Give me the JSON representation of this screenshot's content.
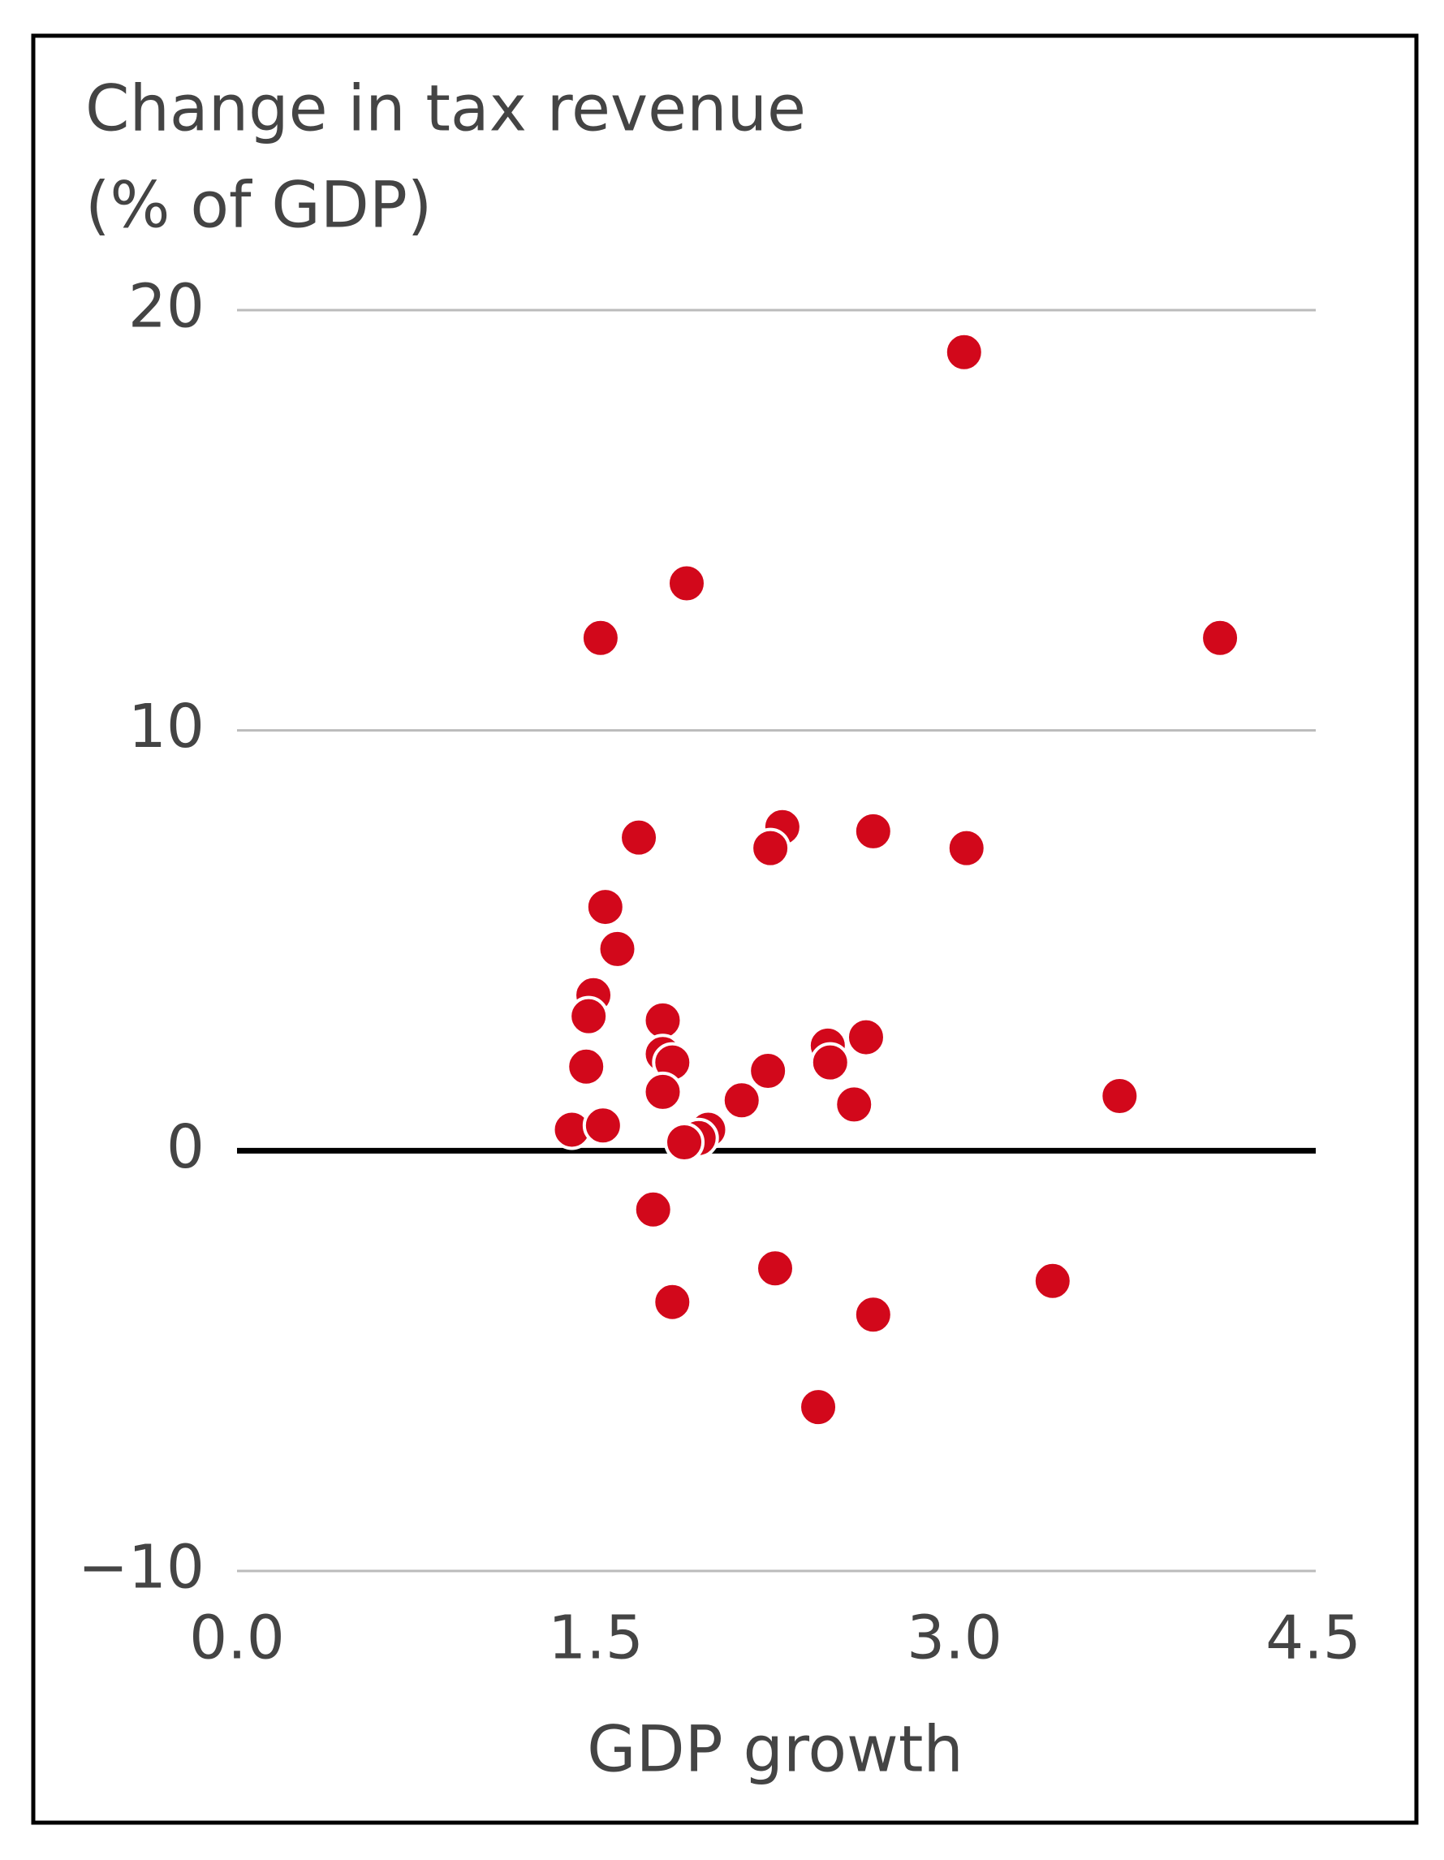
{
  "chart_data": {
    "type": "scatter",
    "title": [
      "Change in tax revenue",
      "(% of GDP)"
    ],
    "x_label": "GDP growth",
    "color": "#d2081b",
    "grid": true,
    "xlim": [
      0,
      4.5
    ],
    "xticks": [
      {
        "value": 0,
        "label": "0.0"
      },
      1.5,
      {
        "value": 3,
        "label": "3.0"
      },
      4.5
    ],
    "ylim": [
      -10,
      20
    ],
    "yticks": [
      {
        "value": -10,
        "label": "−10"
      },
      0,
      10,
      20
    ],
    "x": [
      3.04,
      1.88,
      1.52,
      4.11,
      1.68,
      2.28,
      2.23,
      2.66,
      3.05,
      1.54,
      1.59,
      1.49,
      1.47,
      1.78,
      2.63,
      2.47,
      2.48,
      1.78,
      1.82,
      1.46,
      2.22,
      1.78,
      3.69,
      2.11,
      2.58,
      1.4,
      1.53,
      1.97,
      1.93,
      1.87,
      1.74,
      2.25,
      3.41,
      1.82,
      2.66,
      2.43
    ],
    "values": [
      19.0,
      13.5,
      12.2,
      12.2,
      7.45,
      7.7,
      7.2,
      7.6,
      7.2,
      5.8,
      4.8,
      3.7,
      3.2,
      3.1,
      2.7,
      2.5,
      2.1,
      2.3,
      2.1,
      2.0,
      1.9,
      1.4,
      1.3,
      1.2,
      1.1,
      0.5,
      0.6,
      0.5,
      0.3,
      0.2,
      -1.4,
      -2.8,
      -3.1,
      -3.6,
      -3.9,
      -6.1
    ]
  }
}
